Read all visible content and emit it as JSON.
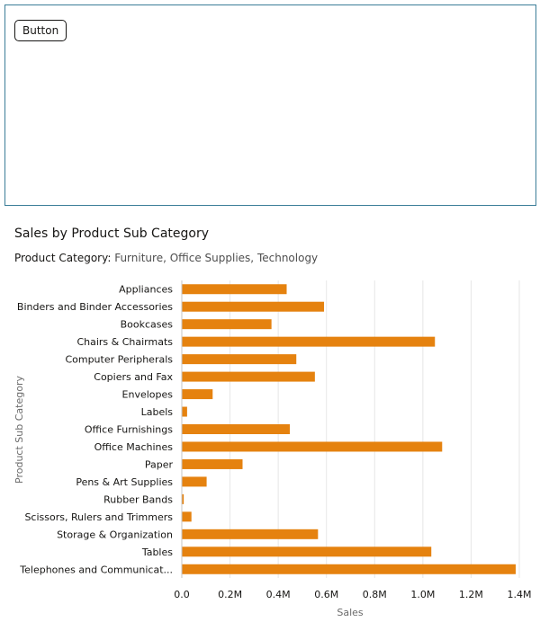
{
  "panel": {
    "button_label": "Button"
  },
  "chart_title": "Sales by Product Sub Category",
  "filter": {
    "label": "Product Category:",
    "value": "Furniture, Office Supplies, Technology"
  },
  "colors": {
    "bar": "#e5820f",
    "grid": "#e6e6e6",
    "panel_border": "#3b7d98"
  },
  "chart_data": {
    "type": "bar",
    "orientation": "horizontal",
    "xlabel": "Sales",
    "ylabel": "Product Sub Category",
    "xlim": [
      0,
      1400000
    ],
    "x_ticks": [
      0,
      200000,
      400000,
      600000,
      800000,
      1000000,
      1200000,
      1400000
    ],
    "x_tick_labels": [
      "0.0",
      "0.2M",
      "0.4M",
      "0.6M",
      "0.8M",
      "1.0M",
      "1.2M",
      "1.4M"
    ],
    "grid": true,
    "categories": [
      "Appliances",
      "Binders and Binder Accessories",
      "Bookcases",
      "Chairs & Chairmats",
      "Computer Peripherals",
      "Copiers and Fax",
      "Envelopes",
      "Labels",
      "Office Furnishings",
      "Office Machines",
      "Paper",
      "Pens & Art Supplies",
      "Rubber Bands",
      "Scissors, Rulers and Trimmers",
      "Storage & Organization",
      "Tables",
      "Telephones and Communicat..."
    ],
    "values": [
      435000,
      590000,
      372000,
      1050000,
      475000,
      552000,
      128000,
      22000,
      448000,
      1080000,
      252000,
      103000,
      8000,
      40000,
      565000,
      1035000,
      1385000
    ]
  }
}
